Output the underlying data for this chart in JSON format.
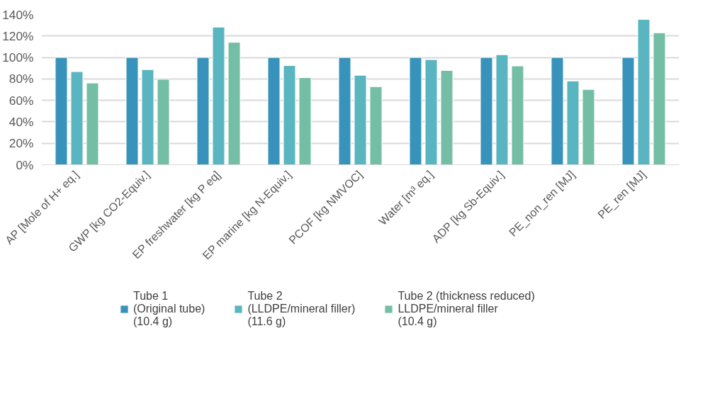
{
  "chart_data": {
    "type": "bar",
    "categories": [
      "AP [Mole of H+ eq.]",
      "GWP [kg CO2-Equiv.]",
      "EP freshwater [kg P eq]",
      "EP marine [kg N-Equiv.]",
      "PCOF [kg NMVOC]",
      "Water [m³ eq.]",
      "ADP [kg Sb-Equiv.]",
      "PE_non_ren [MJ]",
      "PE_ren [MJ]"
    ],
    "series": [
      {
        "name": "Tube 1\n(Original tube)\n(10.4 g)",
        "color": "#3793bb",
        "values": [
          100,
          100,
          100,
          100,
          100,
          100,
          100,
          100,
          100
        ]
      },
      {
        "name": "Tube 2\n(LLDPE/mineral filler)\n(11.6 g)",
        "color": "#59b6c0",
        "values": [
          86.8,
          88.7,
          128.3,
          92.5,
          83.4,
          98.0,
          102.6,
          78.1,
          135.5
        ]
      },
      {
        "name": "Tube 2 (thickness reduced)\nLLDPE/mineral filler\n(10.4 g)",
        "color": "#74bea5",
        "values": [
          76.2,
          79.7,
          114.1,
          81.2,
          72.8,
          87.9,
          92.1,
          70.2,
          123.0
        ]
      }
    ],
    "ylim": [
      0,
      140
    ],
    "yticks": [
      {
        "value": 0,
        "label": "0%"
      },
      {
        "value": 20,
        "label": "20%"
      },
      {
        "value": 40,
        "label": "40%"
      },
      {
        "value": 60,
        "label": "60%"
      },
      {
        "value": 80,
        "label": "80%"
      },
      {
        "value": 100,
        "label": "100%"
      },
      {
        "value": 120,
        "label": "120%"
      },
      {
        "value": 140,
        "label": "140%"
      }
    ],
    "grid": "y",
    "legend": "bottom"
  }
}
